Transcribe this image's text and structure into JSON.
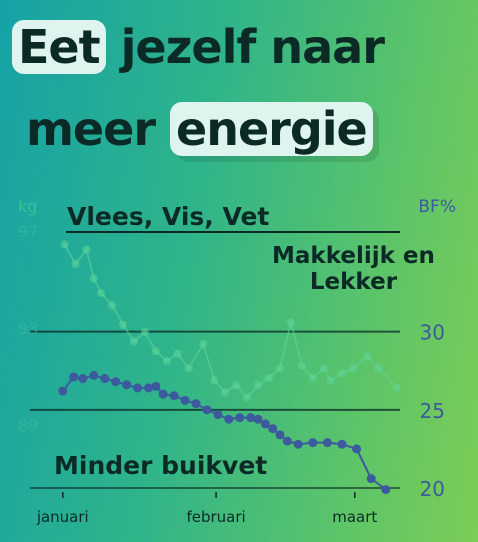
{
  "headline": {
    "line1_pill": "Eet",
    "line1_rest": "jezelf naar",
    "line2_rest": "meer",
    "line2_pill": "energie"
  },
  "labels": {
    "vlees": "Vlees, Vis, Vet",
    "makkelijk_line1": "Makkelijk en",
    "makkelijk_line2": "Lekker",
    "buikvet": "Minder buikvet"
  },
  "colors": {
    "weight_series": "#5fd69a",
    "bf_series": "#3d5a9e",
    "axis_text_left": "#3fc29a",
    "axis_text_right": "#3d5a9e"
  },
  "chart_data": {
    "type": "line",
    "left_axis": {
      "unit": "kg",
      "ticks": [
        97,
        93,
        89
      ],
      "ylim": [
        86.2,
        97
      ]
    },
    "right_axis": {
      "unit": "BF%",
      "ticks": [
        30,
        25,
        20
      ],
      "ylim": [
        20,
        36.5
      ]
    },
    "x_ticks": [
      "januari",
      "februari",
      "maart"
    ],
    "xlim": [
      0,
      100
    ],
    "x_tick_positions": [
      3.5,
      45.5,
      83.5
    ],
    "series": [
      {
        "axis": "left",
        "points": [
          [
            4,
            96.4
          ],
          [
            7,
            95.6
          ],
          [
            10,
            96.2
          ],
          [
            12,
            95.0
          ],
          [
            14,
            94.4
          ],
          [
            17,
            93.9
          ],
          [
            20,
            93.1
          ],
          [
            23,
            92.4
          ],
          [
            26,
            92.8
          ],
          [
            29,
            92.0
          ],
          [
            32,
            91.6
          ],
          [
            35,
            91.9
          ],
          [
            38,
            91.3
          ],
          [
            42,
            92.3
          ],
          [
            45,
            90.8
          ],
          [
            48,
            90.3
          ],
          [
            51,
            90.6
          ],
          [
            54,
            90.1
          ],
          [
            57,
            90.6
          ],
          [
            60,
            90.9
          ],
          [
            63,
            91.3
          ],
          [
            66,
            93.2
          ],
          [
            69,
            91.4
          ],
          [
            72,
            90.9
          ],
          [
            75,
            91.3
          ],
          [
            77,
            90.8
          ],
          [
            80,
            91.1
          ],
          [
            83,
            91.3
          ],
          [
            87,
            91.8
          ],
          [
            90,
            91.3
          ],
          [
            95,
            90.5
          ]
        ]
      },
      {
        "axis": "right",
        "points": [
          [
            3.5,
            26.2
          ],
          [
            6.5,
            27.1
          ],
          [
            9,
            27.0
          ],
          [
            12,
            27.2
          ],
          [
            15,
            27.0
          ],
          [
            18,
            26.8
          ],
          [
            21,
            26.6
          ],
          [
            24,
            26.4
          ],
          [
            27,
            26.4
          ],
          [
            29,
            26.5
          ],
          [
            31,
            26.0
          ],
          [
            34,
            25.9
          ],
          [
            37,
            25.6
          ],
          [
            40,
            25.4
          ],
          [
            43,
            25.0
          ],
          [
            46,
            24.7
          ],
          [
            49,
            24.4
          ],
          [
            52,
            24.5
          ],
          [
            55,
            24.5
          ],
          [
            57,
            24.4
          ],
          [
            59,
            24.1
          ],
          [
            61,
            23.8
          ],
          [
            63,
            23.4
          ],
          [
            65,
            23.0
          ],
          [
            68,
            22.8
          ],
          [
            72,
            22.9
          ],
          [
            76,
            22.9
          ],
          [
            80,
            22.8
          ],
          [
            84,
            22.5
          ],
          [
            88,
            20.6
          ],
          [
            92,
            19.9
          ]
        ]
      }
    ]
  }
}
